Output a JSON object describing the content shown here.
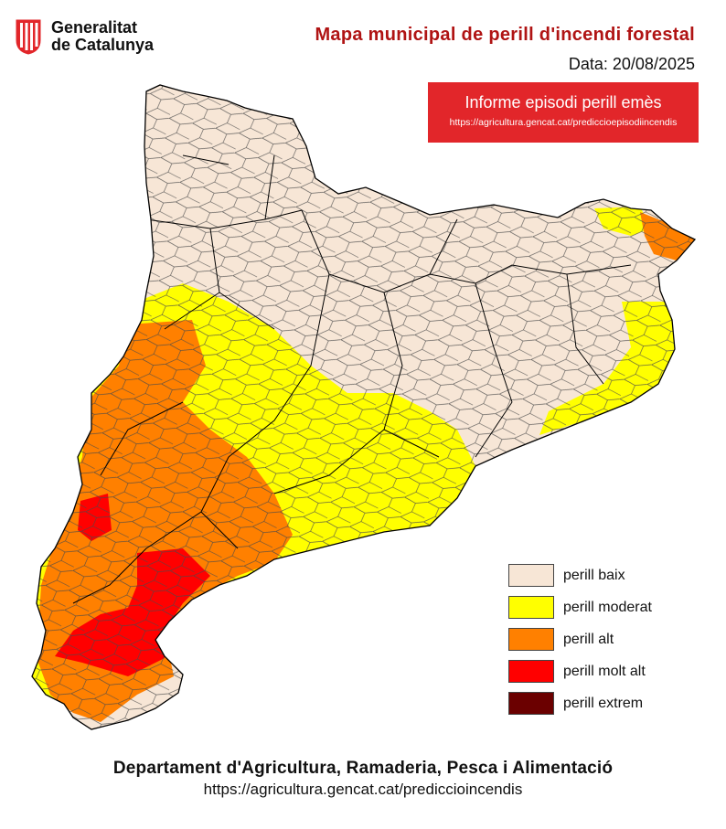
{
  "header": {
    "org_line1": "Generalitat",
    "org_line2": "de Catalunya",
    "title": "Mapa municipal de perill d'incendi forestal",
    "date": "Data: 20/08/2025"
  },
  "alert": {
    "text": "Informe episodi perill emès",
    "url": "https://agricultura.gencat.cat/prediccioepisodiincendis"
  },
  "legend": [
    {
      "label": "perill baix",
      "color": "#f7e6d6"
    },
    {
      "label": "perill moderat",
      "color": "#ffff00"
    },
    {
      "label": "perill alt",
      "color": "#ff8000"
    },
    {
      "label": "perill molt alt",
      "color": "#ff0000"
    },
    {
      "label": "perill extrem",
      "color": "#6b0000"
    }
  ],
  "footer": {
    "department": "Departament d'Agricultura, Ramaderia, Pesca i Alimentació",
    "url": "https://agricultura.gencat.cat/prediccioincendis"
  },
  "colors": {
    "title": "#b01414",
    "alert_bg": "#e2262a",
    "border": "#555555"
  },
  "icons": {
    "logo": "catalonia-emblem-icon"
  }
}
